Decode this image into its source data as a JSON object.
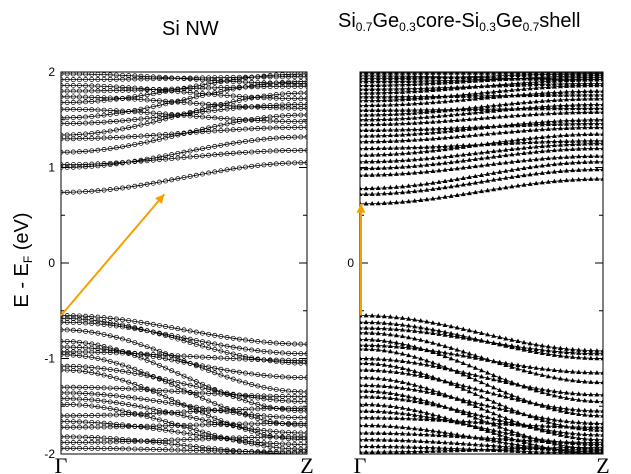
{
  "chart_data": [
    {
      "type": "line",
      "title_main": "Si NW",
      "ylabel_main": "E - E",
      "ylabel_sub": "F",
      "ylabel_unit": " (eV)",
      "ylim": [
        -2,
        2
      ],
      "yticks": [
        -2,
        -1,
        0,
        1,
        2
      ],
      "xticks": [
        "Γ",
        "Z"
      ],
      "marker": "circle",
      "annotation": {
        "type": "arrow",
        "color": "#f5a000",
        "from": [
          0.0,
          -0.55
        ],
        "to": [
          0.42,
          0.72
        ]
      },
      "bands": [
        [
          -0.55,
          -0.85
        ],
        [
          -0.58,
          -1.05
        ],
        [
          -0.62,
          -0.95
        ],
        [
          -0.7,
          -1.35
        ],
        [
          -0.82,
          -1.55
        ],
        [
          -0.88,
          -1.2
        ],
        [
          -0.93,
          -1.02
        ],
        [
          -0.96,
          -1.7
        ],
        [
          -1.08,
          -1.45
        ],
        [
          -1.12,
          -1.85
        ],
        [
          -1.3,
          -1.4
        ],
        [
          -1.36,
          -1.62
        ],
        [
          -1.42,
          -1.78
        ],
        [
          -1.48,
          -1.95
        ],
        [
          -1.6,
          -1.52
        ],
        [
          -1.66,
          -1.9
        ],
        [
          -1.72,
          -1.68
        ],
        [
          -1.82,
          -2.0
        ],
        [
          -1.88,
          -1.82
        ],
        [
          -1.94,
          -1.98
        ],
        [
          0.74,
          1.05
        ],
        [
          1.0,
          1.32
        ],
        [
          1.03,
          1.18
        ],
        [
          1.16,
          1.55
        ],
        [
          1.3,
          1.42
        ],
        [
          1.34,
          1.78
        ],
        [
          1.46,
          1.66
        ],
        [
          1.52,
          1.9
        ],
        [
          1.61,
          1.48
        ],
        [
          1.68,
          1.98
        ],
        [
          1.74,
          1.62
        ],
        [
          1.8,
          1.85
        ],
        [
          1.86,
          1.72
        ],
        [
          1.92,
          1.95
        ],
        [
          1.98,
          1.88
        ]
      ]
    },
    {
      "type": "line",
      "title_parts": [
        "Si",
        "0.7",
        "Ge",
        "0.3",
        "core-Si",
        "0.3",
        "Ge",
        "0.7",
        "shell"
      ],
      "ylim": [
        -2,
        2
      ],
      "yticks": [
        0
      ],
      "xticks": [
        "Γ",
        "Z"
      ],
      "marker": "triangle",
      "annotation": {
        "type": "arrow",
        "color": "#f5a000",
        "from": [
          0.0,
          -0.55
        ],
        "to": [
          0.0,
          0.62
        ]
      },
      "bands": [
        [
          -0.55,
          -0.92
        ],
        [
          -0.62,
          -1.0
        ],
        [
          -0.68,
          -0.95
        ],
        [
          -0.73,
          -1.25
        ],
        [
          -0.8,
          -1.45
        ],
        [
          -0.86,
          -1.15
        ],
        [
          -0.9,
          -1.6
        ],
        [
          -1.0,
          -1.38
        ],
        [
          -1.05,
          -1.75
        ],
        [
          -1.12,
          -1.55
        ],
        [
          -1.2,
          -1.85
        ],
        [
          -1.28,
          -1.68
        ],
        [
          -1.34,
          -1.95
        ],
        [
          -1.4,
          -1.8
        ],
        [
          -1.48,
          -2.0
        ],
        [
          -1.55,
          -1.9
        ],
        [
          -1.62,
          -1.72
        ],
        [
          -1.7,
          -1.98
        ],
        [
          -1.78,
          -1.88
        ],
        [
          -1.85,
          -1.96
        ],
        [
          -1.92,
          -1.99
        ],
        [
          -1.98,
          -1.93
        ],
        [
          0.62,
          0.88
        ],
        [
          0.72,
          0.98
        ],
        [
          0.78,
          1.06
        ],
        [
          0.92,
          1.12
        ],
        [
          0.99,
          1.2
        ],
        [
          1.06,
          1.25
        ],
        [
          1.13,
          1.35
        ],
        [
          1.2,
          1.28
        ],
        [
          1.27,
          1.42
        ],
        [
          1.33,
          1.5
        ],
        [
          1.39,
          1.46
        ],
        [
          1.45,
          1.58
        ],
        [
          1.5,
          1.66
        ],
        [
          1.55,
          1.72
        ],
        [
          1.6,
          1.62
        ],
        [
          1.65,
          1.8
        ],
        [
          1.7,
          1.86
        ],
        [
          1.74,
          1.76
        ],
        [
          1.78,
          1.92
        ],
        [
          1.82,
          1.88
        ],
        [
          1.86,
          1.96
        ],
        [
          1.9,
          1.94
        ],
        [
          1.93,
          1.98
        ],
        [
          1.96,
          1.92
        ],
        [
          1.99,
          1.99
        ]
      ]
    }
  ]
}
